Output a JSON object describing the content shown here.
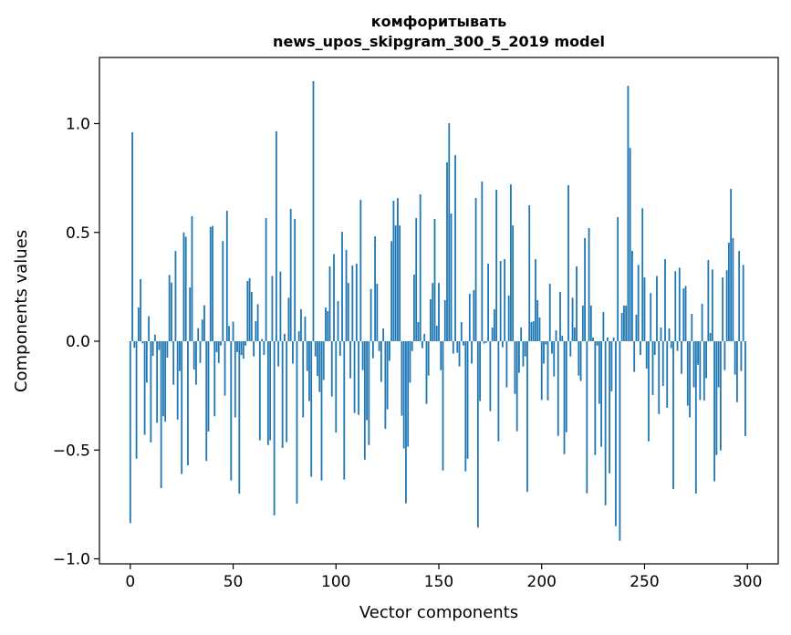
{
  "chart_data": {
    "type": "bar",
    "title_lines": [
      "комфоритывать",
      "news_upos_skipgram_300_5_2019 model"
    ],
    "xlabel": "Vector components",
    "ylabel": "Components values",
    "xlim": [
      -15,
      315
    ],
    "ylim": [
      -1.023,
      1.304
    ],
    "xticks": [
      0,
      50,
      100,
      150,
      200,
      250,
      300
    ],
    "xtick_labels": [
      "0",
      "50",
      "100",
      "150",
      "200",
      "250",
      "300"
    ],
    "yticks": [
      -1.0,
      -0.5,
      0.0,
      0.5,
      1.0
    ],
    "ytick_labels": [
      "−1.0",
      "−0.5",
      "0.0",
      "0.5",
      "1.0"
    ],
    "grid": false,
    "bar_color": "#1f77b4",
    "values": [
      -0.836,
      0.96,
      -0.03,
      -0.54,
      0.155,
      0.285,
      -0.01,
      -0.43,
      -0.19,
      0.115,
      -0.465,
      -0.067,
      0.03,
      -0.375,
      -0.04,
      -0.675,
      -0.345,
      -0.37,
      -0.075,
      0.305,
      0.27,
      -0.2,
      0.415,
      -0.36,
      -0.137,
      -0.61,
      0.5,
      0.48,
      -0.57,
      0.247,
      0.575,
      -0.13,
      -0.2,
      0.06,
      -0.1,
      0.1,
      0.165,
      -0.55,
      -0.415,
      0.525,
      0.53,
      -0.345,
      -0.05,
      -0.1,
      -0.02,
      0.46,
      -0.25,
      0.6,
      0.07,
      -0.64,
      0.09,
      -0.35,
      -0.05,
      -0.7,
      -0.063,
      -0.08,
      -0.02,
      0.277,
      0.29,
      0.226,
      -0.07,
      0.092,
      0.17,
      -0.455,
      0.01,
      -0.063,
      0.566,
      -0.477,
      -0.455,
      0.3,
      -0.8,
      0.965,
      -0.116,
      0.32,
      -0.49,
      0.034,
      -0.464,
      0.2,
      0.608,
      -0.103,
      0.562,
      -0.746,
      0.046,
      0.147,
      -0.35,
      0.113,
      -0.137,
      -0.275,
      -0.623,
      1.195,
      -0.07,
      -0.16,
      -0.233,
      -0.64,
      -0.178,
      0.155,
      0.138,
      0.344,
      -0.254,
      0.4,
      -0.42,
      0.185,
      -0.067,
      0.503,
      -0.636,
      0.42,
      0.268,
      -0.17,
      0.348,
      -0.33,
      0.356,
      -0.338,
      0.65,
      -0.133,
      -0.544,
      -0.363,
      -0.477,
      0.24,
      -0.078,
      0.482,
      0.264,
      -0.045,
      -0.187,
      0.059,
      -0.403,
      -0.313,
      -0.09,
      0.46,
      0.646,
      0.532,
      0.658,
      0.532,
      -0.342,
      -0.493,
      -0.745,
      -0.485,
      -0.19,
      -0.045,
      0.306,
      0.566,
      0.088,
      0.675,
      -0.032,
      0.034,
      -0.288,
      -0.158,
      0.193,
      0.268,
      0.562,
      0.071,
      0.268,
      -0.133,
      -0.594,
      0.189,
      0.822,
      1.002,
      0.587,
      -0.057,
      0.855,
      -0.053,
      -0.116,
      0.088,
      -0.02,
      -0.598,
      -0.54,
      0.218,
      -0.103,
      0.235,
      0.658,
      -0.856,
      -0.275,
      0.734,
      -0.011,
      -0.007,
      0.356,
      -0.321,
      0.063,
      0.147,
      0.696,
      -0.46,
      0.369,
      -0.028,
      0.377,
      -0.212,
      0.21,
      0.721,
      0.532,
      -0.242,
      -0.414,
      -0.145,
      0.063,
      -0.116,
      -0.07,
      -0.692,
      0.625,
      0.088,
      0.092,
      0.377,
      0.189,
      0.109,
      -0.27,
      -0.103,
      -0.015,
      -0.272,
      0.264,
      -0.057,
      -0.162,
      0.05,
      -0.435,
      0.226,
      0.025,
      -0.519,
      -0.418,
      0.717,
      -0.07,
      0.2,
      0.063,
      0.344,
      -0.158,
      -0.183,
      0.164,
      0.474,
      -0.699,
      0.52,
      0.164,
      0.017,
      -0.523,
      -0.02,
      -0.288,
      -0.485,
      0.134,
      -0.754,
      0.017,
      -0.607,
      -0.23,
      0.017,
      -0.85,
      0.57,
      -0.917,
      0.13,
      0.164,
      0.164,
      1.174,
      0.888,
      0.415,
      -0.141,
      0.122,
      0.351,
      -0.063,
      0.611,
      0.293,
      -0.126,
      -0.46,
      0.221,
      -0.247,
      -0.063,
      0.3,
      -0.335,
      0.063,
      -0.205,
      0.377,
      -0.306,
      0.059,
      -0.032,
      -0.679,
      0.322,
      -0.045,
      0.338,
      -0.15,
      0.243,
      0.254,
      -0.296,
      -0.35,
      0.126,
      -0.212,
      -0.7,
      -0.108,
      -0.27,
      0.172,
      -0.272,
      -0.17,
      0.373,
      0.038,
      0.33,
      -0.644,
      -0.523,
      -0.212,
      -0.502,
      0.293,
      -0.133,
      0.326,
      0.453,
      0.7,
      0.474,
      -0.154,
      -0.28,
      0.415,
      -0.137,
      0.351,
      -0.436
    ]
  }
}
